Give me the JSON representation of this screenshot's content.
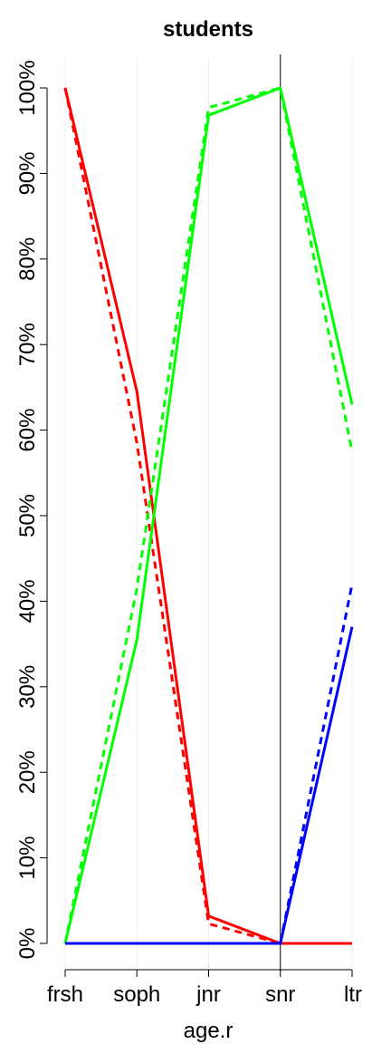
{
  "chart_data": {
    "type": "line",
    "title": "students",
    "xlabel": "age.r",
    "ylabel": "",
    "categories": [
      "frsh",
      "soph",
      "jnr",
      "snr",
      "ltr"
    ],
    "y_ticks": [
      "0%",
      "10%",
      "20%",
      "30%",
      "40%",
      "50%",
      "60%",
      "70%",
      "80%",
      "90%",
      "100%"
    ],
    "ylim": [
      0,
      100
    ],
    "reference_line_at": "snr",
    "grid": "faint vertical",
    "series": [
      {
        "color": "#ff0000",
        "style": "solid",
        "values": [
          100,
          64.5,
          3.2,
          0,
          0
        ]
      },
      {
        "color": "#ff0000",
        "style": "dashed",
        "values": [
          100,
          58.5,
          2.3,
          0,
          0
        ]
      },
      {
        "color": "#00ff00",
        "style": "solid",
        "values": [
          0,
          35.5,
          96.8,
          100,
          63
        ]
      },
      {
        "color": "#00ff00",
        "style": "dashed",
        "values": [
          0,
          41.5,
          97.7,
          100,
          57.5
        ]
      },
      {
        "color": "#0000ff",
        "style": "solid",
        "values": [
          0,
          0,
          0,
          0,
          37
        ]
      },
      {
        "color": "#0000ff",
        "style": "dashed",
        "values": [
          0,
          0,
          0,
          0,
          42
        ]
      }
    ]
  }
}
